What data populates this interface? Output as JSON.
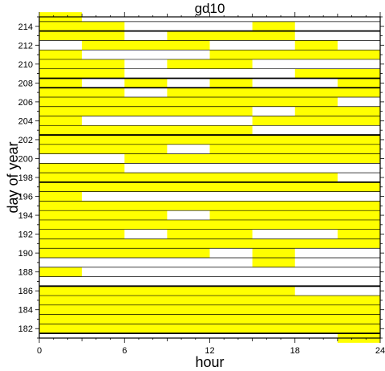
{
  "chart_data": {
    "type": "heatmap",
    "title": "gd10",
    "xlabel": "hour",
    "ylabel": "day of year",
    "xlim": [
      0,
      24
    ],
    "ylim": [
      181,
      215
    ],
    "xticks": [
      "0",
      "6",
      "12",
      "18",
      "24"
    ],
    "yticks": [
      "182",
      "184",
      "186",
      "188",
      "190",
      "192",
      "194",
      "196",
      "198",
      "200",
      "202",
      "204",
      "206",
      "208",
      "210",
      "212",
      "214"
    ],
    "fill_color": "#ffff00",
    "empty_color": "#ffffff",
    "thick_divider_days": [
      181.5,
      186.5,
      197.5,
      202.5,
      207.5,
      208.5,
      213.5
    ],
    "days": [
      {
        "day": 182,
        "intervals": [
          [
            0,
            24
          ]
        ]
      },
      {
        "day": 181,
        "intervals": [
          [
            21,
            24
          ]
        ]
      },
      {
        "day": 183,
        "intervals": [
          [
            0,
            24
          ]
        ]
      },
      {
        "day": 184,
        "intervals": [
          [
            0,
            24
          ]
        ]
      },
      {
        "day": 185,
        "intervals": [
          [
            0,
            24
          ]
        ]
      },
      {
        "day": 186,
        "intervals": [
          [
            0,
            18
          ]
        ]
      },
      {
        "day": 188,
        "intervals": [
          [
            0,
            3
          ]
        ]
      },
      {
        "day": 189,
        "intervals": [
          [
            15,
            18
          ]
        ]
      },
      {
        "day": 190,
        "intervals": [
          [
            0,
            12
          ],
          [
            15,
            18
          ]
        ]
      },
      {
        "day": 191,
        "intervals": [
          [
            0,
            24
          ]
        ]
      },
      {
        "day": 192,
        "intervals": [
          [
            0,
            6
          ],
          [
            9,
            15
          ],
          [
            21,
            24
          ]
        ]
      },
      {
        "day": 193,
        "intervals": [
          [
            0,
            24
          ]
        ]
      },
      {
        "day": 194,
        "intervals": [
          [
            0,
            9
          ],
          [
            12,
            24
          ]
        ]
      },
      {
        "day": 195,
        "intervals": [
          [
            0,
            24
          ]
        ]
      },
      {
        "day": 196,
        "intervals": [
          [
            0,
            3
          ]
        ]
      },
      {
        "day": 197,
        "intervals": [
          [
            0,
            24
          ]
        ]
      },
      {
        "day": 198,
        "intervals": [
          [
            0,
            21
          ]
        ]
      },
      {
        "day": 199,
        "intervals": [
          [
            0,
            6
          ]
        ]
      },
      {
        "day": 200,
        "intervals": [
          [
            6,
            24
          ]
        ]
      },
      {
        "day": 201,
        "intervals": [
          [
            0,
            9
          ],
          [
            12,
            24
          ]
        ]
      },
      {
        "day": 202,
        "intervals": [
          [
            0,
            24
          ]
        ]
      },
      {
        "day": 203,
        "intervals": [
          [
            0,
            15
          ]
        ]
      },
      {
        "day": 204,
        "intervals": [
          [
            0,
            3
          ],
          [
            15,
            24
          ]
        ]
      },
      {
        "day": 205,
        "intervals": [
          [
            0,
            15
          ],
          [
            18,
            24
          ]
        ]
      },
      {
        "day": 206,
        "intervals": [
          [
            0,
            21
          ]
        ]
      },
      {
        "day": 207,
        "intervals": [
          [
            0,
            6
          ],
          [
            9,
            24
          ]
        ]
      },
      {
        "day": 208,
        "intervals": [
          [
            0,
            3
          ],
          [
            6,
            9
          ],
          [
            12,
            15
          ],
          [
            21,
            24
          ]
        ]
      },
      {
        "day": 209,
        "intervals": [
          [
            0,
            6
          ],
          [
            18,
            24
          ]
        ]
      },
      {
        "day": 210,
        "intervals": [
          [
            0,
            6
          ],
          [
            9,
            15
          ]
        ]
      },
      {
        "day": 211,
        "intervals": [
          [
            0,
            3
          ],
          [
            12,
            24
          ]
        ]
      },
      {
        "day": 212,
        "intervals": [
          [
            3,
            12
          ],
          [
            18,
            21
          ]
        ]
      },
      {
        "day": 213,
        "intervals": [
          [
            0,
            6
          ],
          [
            9,
            18
          ]
        ]
      },
      {
        "day": 214,
        "intervals": [
          [
            0,
            6
          ],
          [
            15,
            18
          ]
        ]
      },
      {
        "day": 215,
        "intervals": [
          [
            0,
            3
          ]
        ]
      }
    ]
  }
}
